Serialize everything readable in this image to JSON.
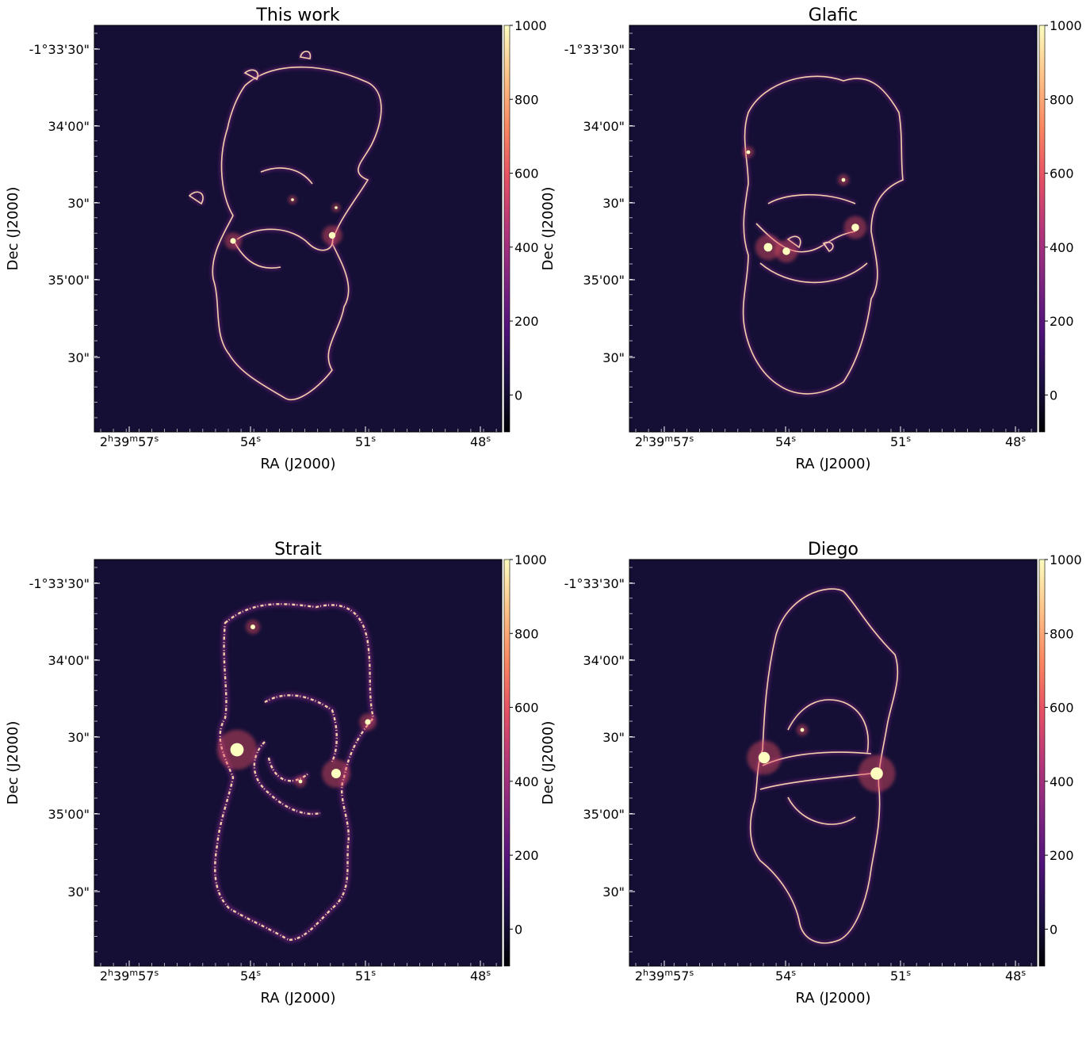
{
  "chart_data": [
    {
      "type": "heatmap",
      "title": "This work",
      "xlabel": "RA (J2000)",
      "ylabel": "Dec (J2000)",
      "x_ticks": [
        {
          "h": "2",
          "m": "39",
          "s": "57"
        },
        {
          "s": "54"
        },
        {
          "s": "51"
        },
        {
          "s": "48"
        }
      ],
      "y_ticks": [
        "-1°33'30\"",
        "34'00\"",
        "30\"",
        "35'00\"",
        "30\""
      ],
      "colorbar": {
        "range": [
          -100,
          1000
        ],
        "ticks": [
          "1000",
          "800",
          "600",
          "400",
          "200",
          "0"
        ]
      },
      "variant": "thin-caustics"
    },
    {
      "type": "heatmap",
      "title": "Glafic",
      "xlabel": "RA (J2000)",
      "ylabel": "Dec (J2000)",
      "x_ticks": [
        {
          "h": "2",
          "m": "39",
          "s": "57"
        },
        {
          "s": "54"
        },
        {
          "s": "51"
        },
        {
          "s": "48"
        }
      ],
      "y_ticks": [
        "-1°33'30\"",
        "34'00\"",
        "30\"",
        "35'00\"",
        "30\""
      ],
      "colorbar": {
        "range": [
          -100,
          1000
        ],
        "ticks": [
          "1000",
          "800",
          "600",
          "400",
          "200",
          "0"
        ]
      },
      "variant": "thin-caustics-bright"
    },
    {
      "type": "heatmap",
      "title": "Strait",
      "xlabel": "RA (J2000)",
      "ylabel": "Dec (J2000)",
      "x_ticks": [
        {
          "h": "2",
          "m": "39",
          "s": "57"
        },
        {
          "s": "54"
        },
        {
          "s": "51"
        },
        {
          "s": "48"
        }
      ],
      "y_ticks": [
        "-1°33'30\"",
        "34'00\"",
        "30\"",
        "35'00\"",
        "30\""
      ],
      "colorbar": {
        "range": [
          -100,
          1000
        ],
        "ticks": [
          "1000",
          "800",
          "600",
          "400",
          "200",
          "0"
        ]
      },
      "variant": "noisy-caustics"
    },
    {
      "type": "heatmap",
      "title": "Diego",
      "xlabel": "RA (J2000)",
      "ylabel": "Dec (J2000)",
      "x_ticks": [
        {
          "h": "2",
          "m": "39",
          "s": "57"
        },
        {
          "s": "54"
        },
        {
          "s": "51"
        },
        {
          "s": "48"
        }
      ],
      "y_ticks": [
        "-1°33'30\"",
        "34'00\"",
        "30\"",
        "35'00\"",
        "30\""
      ],
      "colorbar": {
        "range": [
          -100,
          1000
        ],
        "ticks": [
          "1000",
          "800",
          "600",
          "400",
          "200",
          "0"
        ]
      },
      "variant": "smooth-caustics"
    }
  ],
  "colors": {
    "background": "#150f36",
    "colormap": [
      "#000004",
      "#1c1044",
      "#4f127b",
      "#812581",
      "#b5367a",
      "#e55064",
      "#fb8761",
      "#fec287",
      "#fcfdbf"
    ]
  }
}
